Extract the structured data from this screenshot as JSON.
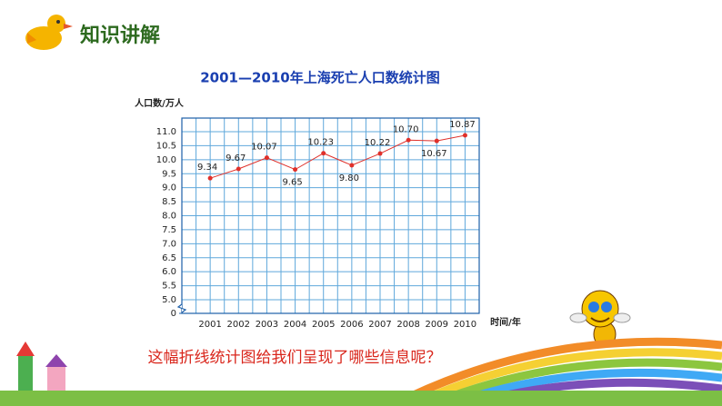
{
  "header": {
    "title": "知识讲解"
  },
  "question": "这幅折线统计图给我们呈现了哪些信息呢？",
  "chart_data": {
    "type": "line",
    "title": "2001—2010年上海死亡人口数统计图",
    "y_label": "人口数/万人",
    "x_label": "时间/年",
    "categories": [
      "2001",
      "2002",
      "2003",
      "2004",
      "2005",
      "2006",
      "2007",
      "2008",
      "2009",
      "2010"
    ],
    "values": [
      9.34,
      9.67,
      10.07,
      9.65,
      10.23,
      9.8,
      10.22,
      10.7,
      10.67,
      10.87
    ],
    "value_labels": [
      "9.34",
      "9.67",
      "10.07",
      "9.65",
      "10.23",
      "9.80",
      "10.22",
      "10.70",
      "10.67",
      "10.87"
    ],
    "color": "#e0302a",
    "ylim": [
      5,
      11
    ],
    "yticks": [
      0,
      {
        "value": 5,
        "label": "5.0"
      },
      5.5,
      {
        "value": 6,
        "label": "6.0"
      },
      6.5,
      {
        "value": 7,
        "label": "7.0"
      },
      7.5,
      {
        "value": 8,
        "label": "8.0"
      },
      8.5,
      {
        "value": 9,
        "label": "9.0"
      },
      9.5,
      {
        "value": 10,
        "label": "10.0"
      },
      10.5,
      {
        "value": 11,
        "label": "11.0"
      }
    ],
    "axis_break": true,
    "grid": true
  }
}
